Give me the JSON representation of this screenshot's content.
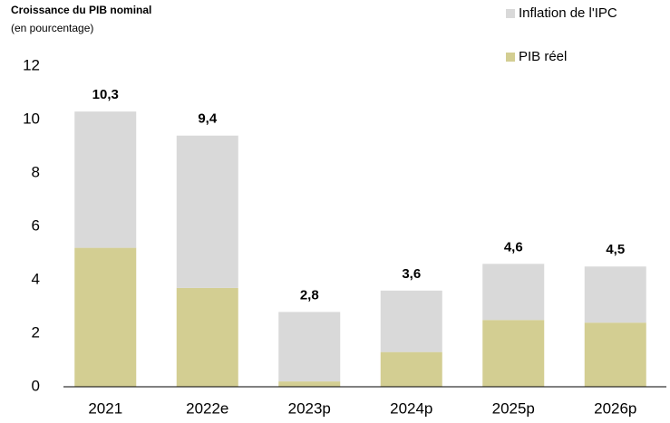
{
  "chart_data": {
    "type": "stacked_bar",
    "title": "Croissance du PIB nominal",
    "subtitle": "(en pourcentage)",
    "categories": [
      "2021",
      "2022e",
      "2023p",
      "2024p",
      "2025p",
      "2026p"
    ],
    "series": [
      {
        "name": "PIB réel",
        "color": "#d3ce92",
        "values": [
          5.2,
          3.7,
          0.2,
          1.3,
          2.5,
          2.4
        ]
      },
      {
        "name": "Inflation de l'IPC",
        "color": "#d9d9d9",
        "values": [
          5.1,
          5.7,
          2.6,
          2.3,
          2.1,
          2.1
        ]
      }
    ],
    "totals": {
      "values": [
        10.3,
        9.4,
        2.8,
        3.6,
        4.6,
        4.5
      ],
      "value_labels": [
        "10,3",
        "9,4",
        "2,8",
        "3,6",
        "4,6",
        "4,5"
      ]
    },
    "ylim": [
      0,
      12
    ],
    "yticks": [
      0,
      2,
      4,
      6,
      8,
      10,
      12
    ],
    "legend": "top-right"
  }
}
